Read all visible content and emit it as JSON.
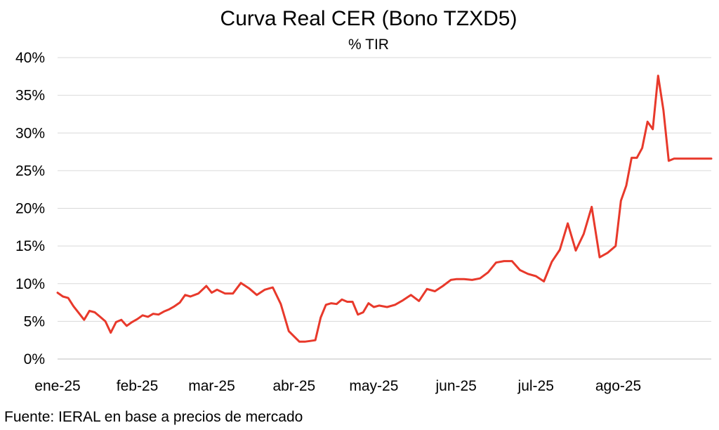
{
  "chart_data": {
    "type": "line",
    "title": "Curva Real CER (Bono TZXD5)",
    "subtitle": "% TIR",
    "source": "Fuente: IERAL en base a precios de mercado",
    "xlabel": "",
    "ylabel": "",
    "ylim": [
      0,
      40
    ],
    "yticks": [
      "0%",
      "5%",
      "10%",
      "15%",
      "20%",
      "25%",
      "30%",
      "35%",
      "40%"
    ],
    "xticks": [
      {
        "label": "ene-25",
        "date": "2025-01-02"
      },
      {
        "label": "feb-25",
        "date": "2025-02-01"
      },
      {
        "label": "mar-25",
        "date": "2025-03-01"
      },
      {
        "label": "abr-25",
        "date": "2025-04-01"
      },
      {
        "label": "may-25",
        "date": "2025-05-01"
      },
      {
        "label": "jun-25",
        "date": "2025-06-01"
      },
      {
        "label": "jul-25",
        "date": "2025-07-01"
      },
      {
        "label": "ago-25",
        "date": "2025-08-01"
      }
    ],
    "grid": true,
    "legend": "none",
    "series": [
      {
        "color": "#e8392b",
        "x": [
          "2025-01-02",
          "2025-01-04",
          "2025-01-06",
          "2025-01-08",
          "2025-01-10",
          "2025-01-12",
          "2025-01-14",
          "2025-01-16",
          "2025-01-18",
          "2025-01-20",
          "2025-01-22",
          "2025-01-24",
          "2025-01-26",
          "2025-01-28",
          "2025-01-30",
          "2025-02-01",
          "2025-02-03",
          "2025-02-05",
          "2025-02-07",
          "2025-02-09",
          "2025-02-11",
          "2025-02-13",
          "2025-02-15",
          "2025-02-17",
          "2025-02-19",
          "2025-02-21",
          "2025-02-24",
          "2025-02-27",
          "2025-03-01",
          "2025-03-03",
          "2025-03-06",
          "2025-03-09",
          "2025-03-12",
          "2025-03-15",
          "2025-03-18",
          "2025-03-21",
          "2025-03-24",
          "2025-03-27",
          "2025-03-30",
          "2025-04-01",
          "2025-04-03",
          "2025-04-05",
          "2025-04-07",
          "2025-04-09",
          "2025-04-11",
          "2025-04-13",
          "2025-04-15",
          "2025-04-17",
          "2025-04-19",
          "2025-04-21",
          "2025-04-23",
          "2025-04-25",
          "2025-04-27",
          "2025-04-29",
          "2025-05-01",
          "2025-05-03",
          "2025-05-06",
          "2025-05-09",
          "2025-05-12",
          "2025-05-15",
          "2025-05-18",
          "2025-05-21",
          "2025-05-24",
          "2025-05-27",
          "2025-05-30",
          "2025-06-01",
          "2025-06-04",
          "2025-06-07",
          "2025-06-10",
          "2025-06-13",
          "2025-06-16",
          "2025-06-19",
          "2025-06-22",
          "2025-06-25",
          "2025-06-28",
          "2025-07-01",
          "2025-07-04",
          "2025-07-07",
          "2025-07-10",
          "2025-07-13",
          "2025-07-16",
          "2025-07-19",
          "2025-07-22",
          "2025-07-25",
          "2025-07-28",
          "2025-07-31",
          "2025-08-02",
          "2025-08-04",
          "2025-08-06",
          "2025-08-08",
          "2025-08-10",
          "2025-08-12",
          "2025-08-14",
          "2025-08-16",
          "2025-08-18",
          "2025-08-20",
          "2025-08-22",
          "2025-08-24",
          "2025-08-26",
          "2025-08-28",
          "2025-08-30",
          "2025-09-01",
          "2025-09-03",
          "2025-09-05"
        ],
        "y": [
          8.8,
          8.3,
          8.1,
          7.0,
          6.1,
          5.2,
          6.4,
          6.2,
          5.6,
          5.0,
          3.5,
          4.9,
          5.2,
          4.4,
          4.9,
          5.3,
          5.8,
          5.6,
          6.0,
          5.9,
          6.3,
          6.6,
          7.0,
          7.5,
          8.5,
          8.3,
          8.7,
          9.7,
          8.8,
          9.2,
          8.7,
          8.7,
          10.1,
          9.4,
          8.5,
          9.2,
          9.5,
          7.3,
          3.7,
          3.0,
          2.3,
          2.3,
          2.4,
          2.5,
          5.5,
          7.2,
          7.4,
          7.3,
          7.9,
          7.6,
          7.6,
          5.9,
          6.2,
          7.4,
          6.9,
          7.1,
          6.9,
          7.2,
          7.8,
          8.5,
          7.7,
          9.3,
          9.0,
          9.7,
          10.5,
          10.6,
          10.6,
          10.5,
          10.7,
          11.5,
          12.8,
          13.0,
          13.0,
          11.8,
          11.3,
          11.0,
          10.3,
          12.9,
          14.5,
          18.0,
          14.4,
          16.6,
          20.2,
          13.5,
          14.1,
          15.0,
          21.0,
          23.0,
          26.7,
          26.7,
          28.0,
          31.5,
          30.5,
          37.6,
          33.0,
          26.3,
          26.6,
          26.6,
          26.6,
          26.6,
          26.6,
          26.6,
          26.6,
          26.6
        ]
      }
    ]
  }
}
